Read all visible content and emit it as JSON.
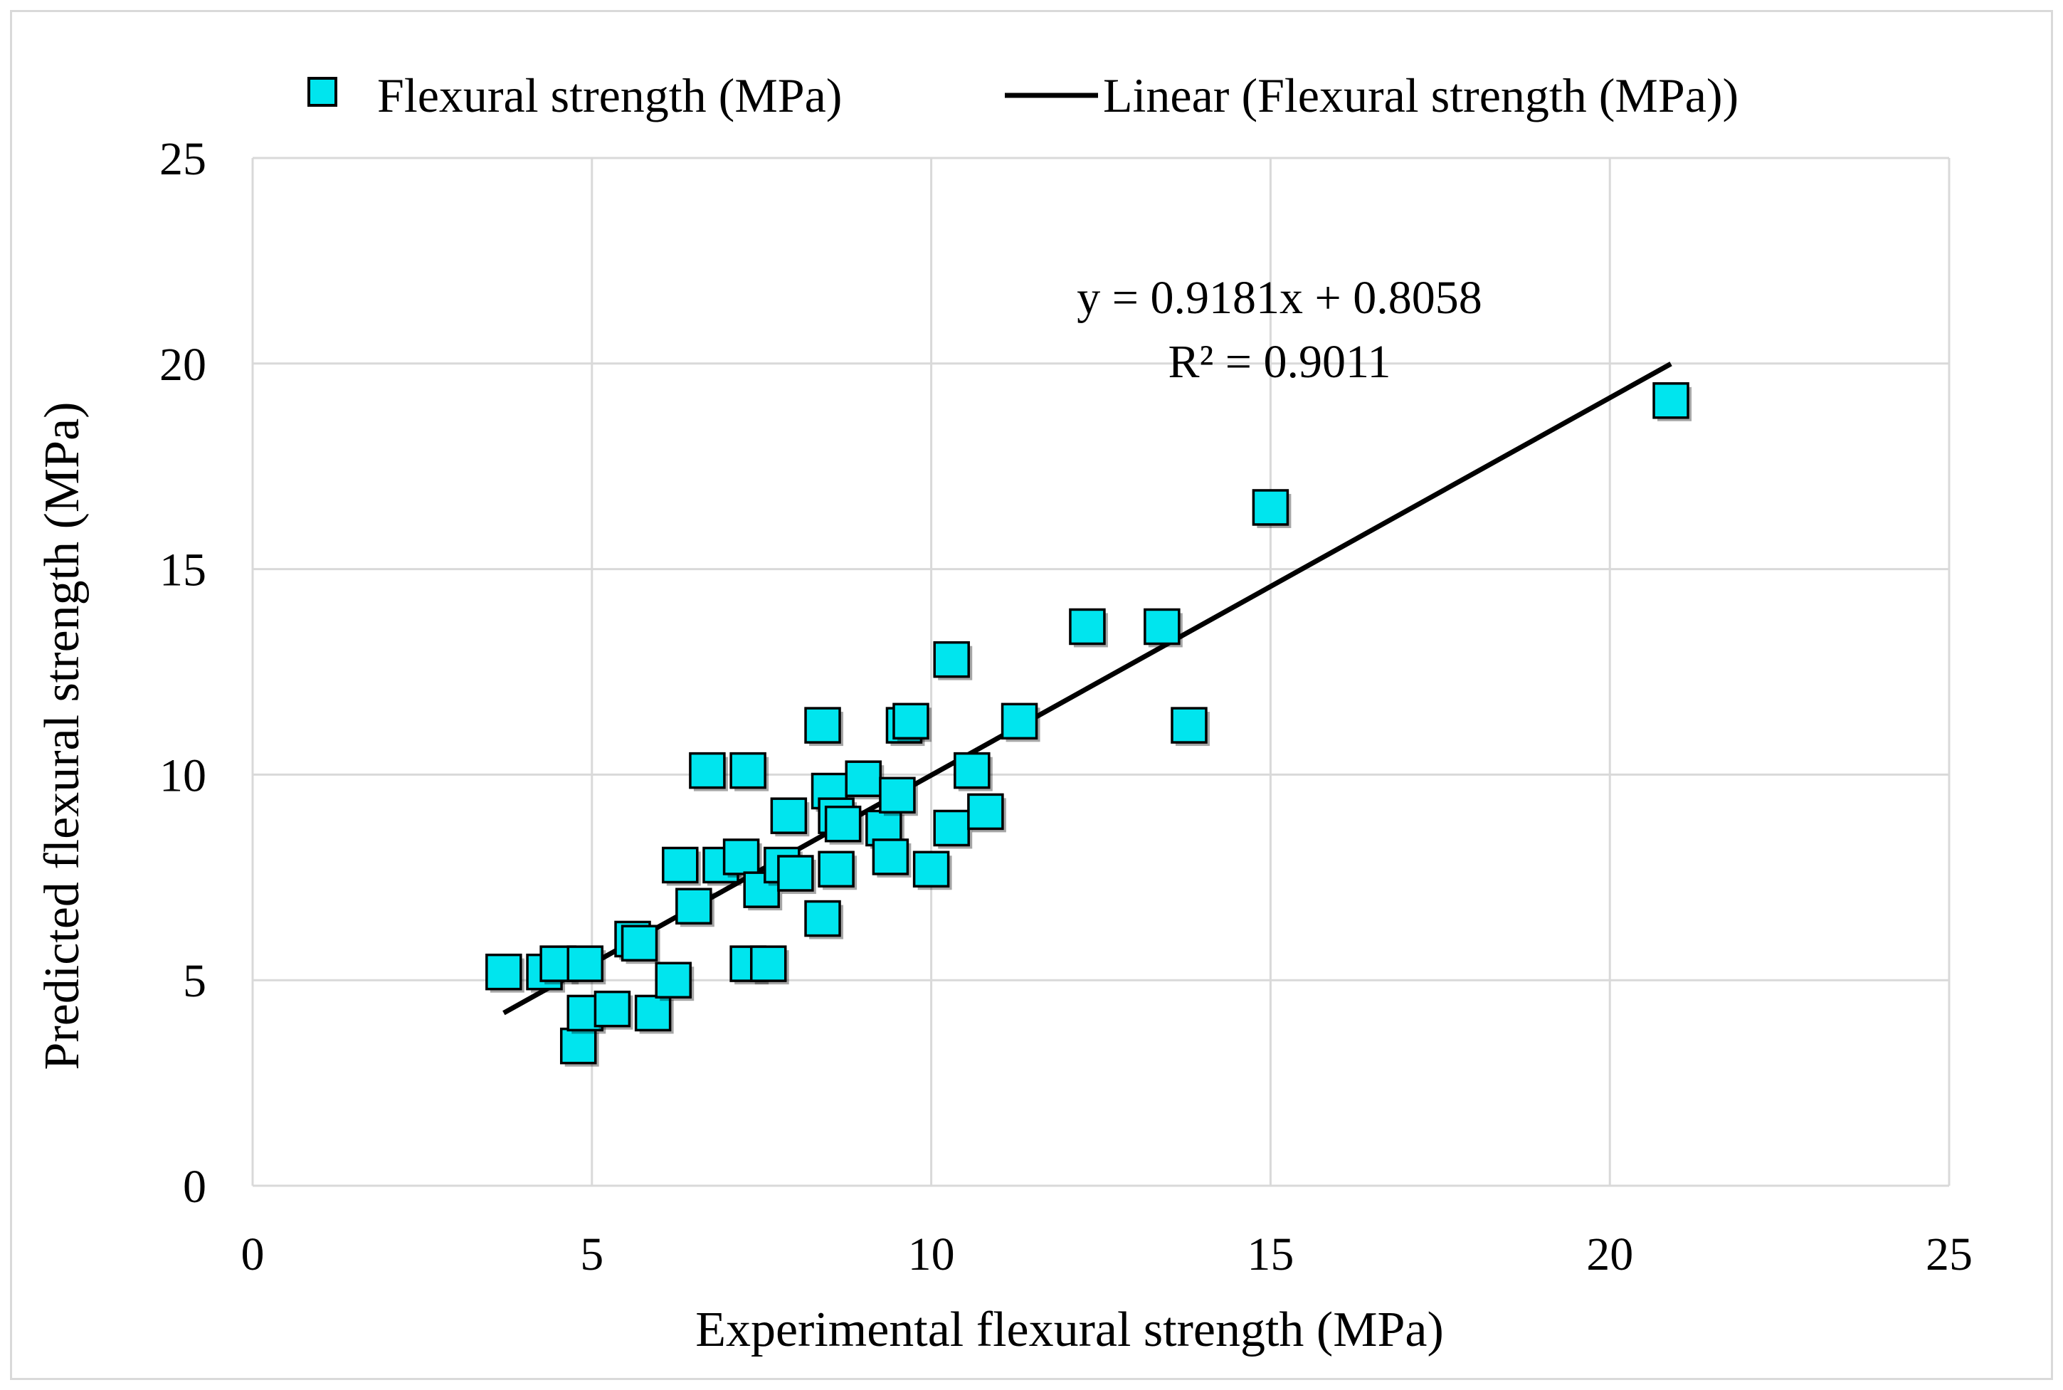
{
  "chart_data": {
    "type": "scatter",
    "xlabel": "Experimental flexural strength (MPa)",
    "ylabel": "Predicted flexural strength (MPa)",
    "xlim": [
      0,
      25
    ],
    "ylim": [
      0,
      25
    ],
    "xticks": [
      "0",
      "5",
      "10",
      "15",
      "20",
      "25"
    ],
    "yticks": [
      "0",
      "5",
      "10",
      "15",
      "20",
      "25"
    ],
    "grid": true,
    "legend_position": "top",
    "series": [
      {
        "name": "Flexural strength (MPa)",
        "marker": "square",
        "color": "#00e5ee",
        "points": [
          [
            3.7,
            5.2
          ],
          [
            4.3,
            5.2
          ],
          [
            4.5,
            5.4
          ],
          [
            4.8,
            3.4
          ],
          [
            4.9,
            4.2
          ],
          [
            4.9,
            5.4
          ],
          [
            5.3,
            4.3
          ],
          [
            5.6,
            6.0
          ],
          [
            5.7,
            5.9
          ],
          [
            5.9,
            4.2
          ],
          [
            6.2,
            5.0
          ],
          [
            6.3,
            7.8
          ],
          [
            6.5,
            6.8
          ],
          [
            6.7,
            10.1
          ],
          [
            6.9,
            7.8
          ],
          [
            7.2,
            8.0
          ],
          [
            7.3,
            10.1
          ],
          [
            7.3,
            5.4
          ],
          [
            7.5,
            7.2
          ],
          [
            7.6,
            5.4
          ],
          [
            7.8,
            7.8
          ],
          [
            7.9,
            9.0
          ],
          [
            8.0,
            7.6
          ],
          [
            8.4,
            6.5
          ],
          [
            8.4,
            11.2
          ],
          [
            8.5,
            9.6
          ],
          [
            8.6,
            7.7
          ],
          [
            8.6,
            9.0
          ],
          [
            8.7,
            8.8
          ],
          [
            9.0,
            9.9
          ],
          [
            9.3,
            8.7
          ],
          [
            9.4,
            8.0
          ],
          [
            9.5,
            9.5
          ],
          [
            9.6,
            11.2
          ],
          [
            9.7,
            11.3
          ],
          [
            10.0,
            7.7
          ],
          [
            10.3,
            12.8
          ],
          [
            10.3,
            8.7
          ],
          [
            10.6,
            10.1
          ],
          [
            10.8,
            9.1
          ],
          [
            11.3,
            11.3
          ],
          [
            12.3,
            13.6
          ],
          [
            13.4,
            13.6
          ],
          [
            13.8,
            11.2
          ],
          [
            15.0,
            16.5
          ],
          [
            20.9,
            19.1
          ]
        ]
      }
    ],
    "trendline": {
      "name": "Linear (Flexural strength (MPa))",
      "slope": 0.9181,
      "intercept": 0.8058,
      "x_range": [
        3.7,
        20.9
      ],
      "color": "#000000",
      "equation": "y = 0.9181x + 0.8058",
      "r_squared": "R² = 0.9011"
    }
  }
}
